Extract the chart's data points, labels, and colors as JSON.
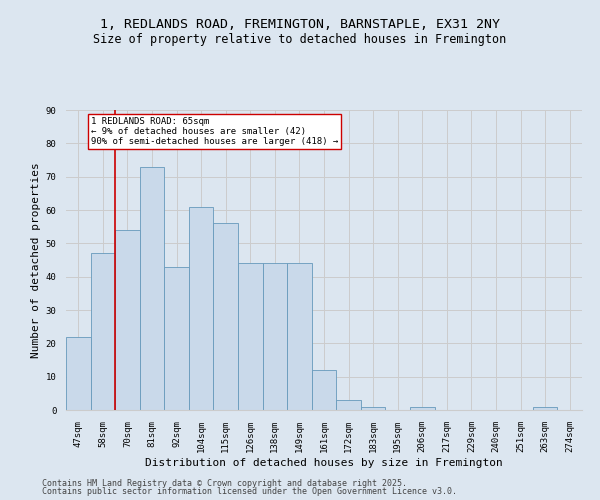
{
  "title_line1": "1, REDLANDS ROAD, FREMINGTON, BARNSTAPLE, EX31 2NY",
  "title_line2": "Size of property relative to detached houses in Fremington",
  "xlabel": "Distribution of detached houses by size in Fremington",
  "ylabel": "Number of detached properties",
  "categories": [
    "47sqm",
    "58sqm",
    "70sqm",
    "81sqm",
    "92sqm",
    "104sqm",
    "115sqm",
    "126sqm",
    "138sqm",
    "149sqm",
    "161sqm",
    "172sqm",
    "183sqm",
    "195sqm",
    "206sqm",
    "217sqm",
    "229sqm",
    "240sqm",
    "251sqm",
    "263sqm",
    "274sqm"
  ],
  "values": [
    22,
    47,
    54,
    73,
    43,
    61,
    56,
    44,
    44,
    44,
    12,
    3,
    1,
    0,
    1,
    0,
    0,
    0,
    0,
    1,
    0
  ],
  "bar_color": "#c9d9ea",
  "bar_edge_color": "#6699bb",
  "bar_linewidth": 0.6,
  "vline_x_idx": 1.5,
  "vline_color": "#cc0000",
  "annotation_text": "1 REDLANDS ROAD: 65sqm\n← 9% of detached houses are smaller (42)\n90% of semi-detached houses are larger (418) →",
  "annotation_box_color": "#ffffff",
  "annotation_box_edge": "#cc0000",
  "ylim": [
    0,
    90
  ],
  "yticks": [
    0,
    10,
    20,
    30,
    40,
    50,
    60,
    70,
    80,
    90
  ],
  "grid_color": "#cccccc",
  "bg_color": "#dce6f0",
  "footer_line1": "Contains HM Land Registry data © Crown copyright and database right 2025.",
  "footer_line2": "Contains public sector information licensed under the Open Government Licence v3.0.",
  "title_fontsize": 9.5,
  "subtitle_fontsize": 8.5,
  "tick_fontsize": 6.5,
  "ylabel_fontsize": 8,
  "xlabel_fontsize": 8,
  "annot_fontsize": 6.5,
  "footer_fontsize": 6
}
